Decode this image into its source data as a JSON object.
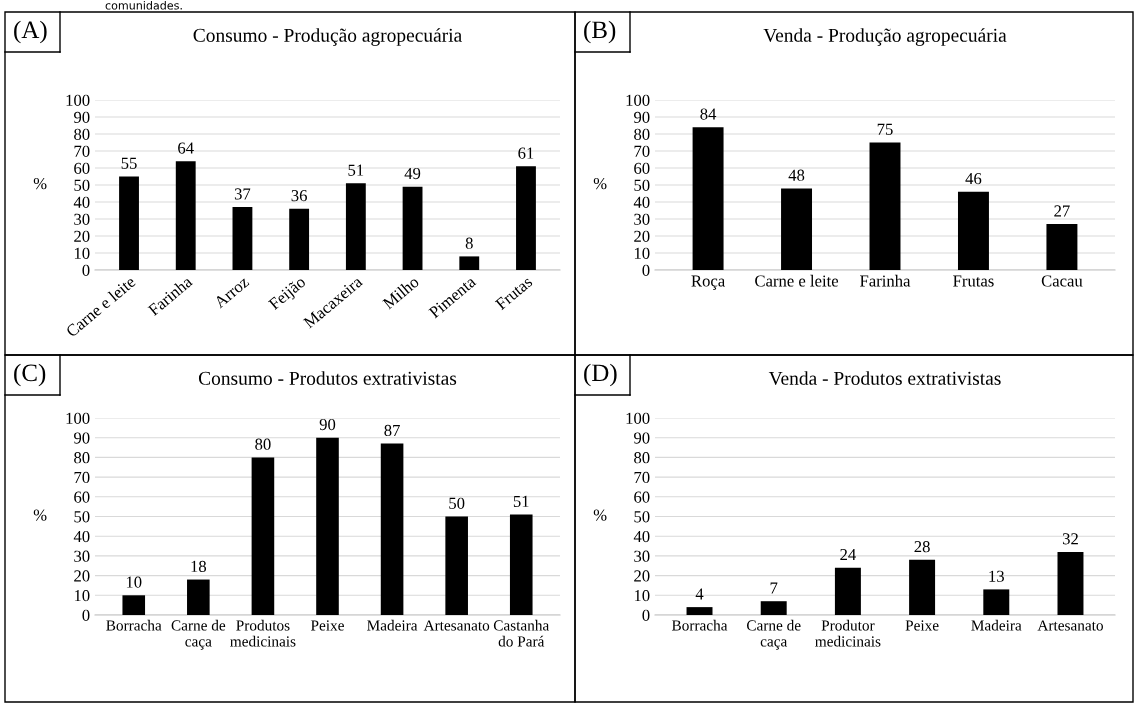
{
  "chart_data": [
    {
      "type": "bar",
      "title": "Consumo - Produção agropecuária",
      "ylabel": "%",
      "annotations": [
        "comunidades.",
        "(A)"
      ],
      "categories": [
        "Carne e leite",
        "Farinha",
        "Arroz",
        "Feijão",
        "Macaxeira",
        "Milho",
        "Pimenta",
        "Frutas"
      ],
      "values": [
        55,
        64,
        37,
        36,
        51,
        49,
        8,
        61
      ],
      "color": "#000000",
      "ylim": [
        0,
        100
      ],
      "yticks": [
        0,
        10,
        20,
        30,
        40,
        50,
        60,
        70,
        80,
        90,
        100
      ],
      "grid": "y",
      "data_labels": true
    },
    {
      "type": "bar",
      "title": "Venda - Produção agropecuária",
      "ylabel": "%",
      "annotations": [
        "(B)"
      ],
      "categories": [
        "Roça",
        "Carne e leite",
        "Farinha",
        "Frutas",
        "Cacau"
      ],
      "values": [
        84,
        48,
        75,
        46,
        27
      ],
      "color": "#000000",
      "ylim": [
        0,
        100
      ],
      "yticks": [
        0,
        10,
        20,
        30,
        40,
        50,
        60,
        70,
        80,
        90,
        100
      ],
      "grid": "y",
      "data_labels": true
    },
    {
      "type": "bar",
      "title": "Consumo - Produtos extrativistas",
      "ylabel": "%",
      "annotations": [
        "(C)"
      ],
      "categories": [
        "Borracha",
        "Carne de\ncaça",
        "Produtos\nmedicinais",
        "Peixe",
        "Madeira",
        "Artesanato",
        "Castanha\ndo Pará"
      ],
      "values": [
        10,
        18,
        80,
        90,
        87,
        50,
        51
      ],
      "color": "#000000",
      "ylim": [
        0,
        100
      ],
      "yticks": [
        0,
        10,
        20,
        30,
        40,
        50,
        60,
        70,
        80,
        90,
        100
      ],
      "grid": "y",
      "data_labels": true
    },
    {
      "type": "bar",
      "title": "Venda - Produtos extrativistas",
      "ylabel": "%",
      "annotations": [
        "(D)"
      ],
      "categories": [
        "Borracha",
        "Carne de\ncaça",
        "Produtor\nmedicinais",
        "Peixe",
        "Madeira",
        "Artesanato"
      ],
      "values": [
        4,
        7,
        24,
        28,
        13,
        32
      ],
      "color": "#000000",
      "ylim": [
        0,
        100
      ],
      "yticks": [
        0,
        10,
        20,
        30,
        40,
        50,
        60,
        70,
        80,
        90,
        100
      ],
      "grid": "y",
      "data_labels": true
    }
  ]
}
